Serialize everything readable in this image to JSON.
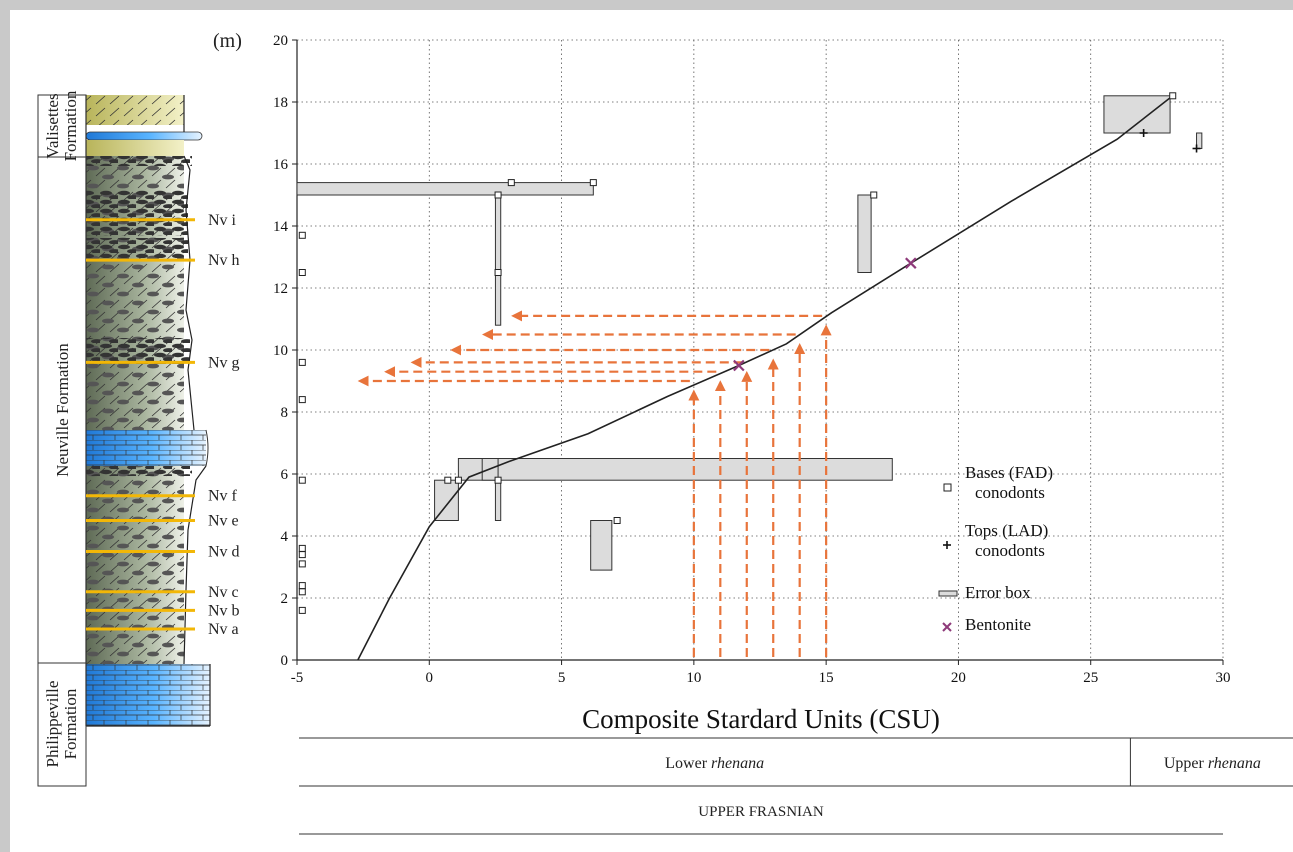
{
  "accent_color": "#e8743b",
  "bentonite_color": "#8e3a7a",
  "column": {
    "formations": [
      {
        "id": "valisettes",
        "lines": [
          "Valisettes",
          "Formation"
        ]
      },
      {
        "id": "neuville",
        "lines": [
          "Neuville Formation"
        ]
      },
      {
        "id": "philippeville",
        "lines": [
          "Philippeville",
          "Formation"
        ]
      }
    ],
    "beds": [
      {
        "label": "Nv i",
        "csu_height_m": 14.2
      },
      {
        "label": "Nv h",
        "csu_height_m": 12.9
      },
      {
        "label": "Nv g",
        "csu_height_m": 9.6
      },
      {
        "label": "Nv f",
        "csu_height_m": 5.3
      },
      {
        "label": "Nv e",
        "csu_height_m": 4.5
      },
      {
        "label": "Nv d",
        "csu_height_m": 3.5
      },
      {
        "label": "Nv c",
        "csu_height_m": 2.2
      },
      {
        "label": "Nv b",
        "csu_height_m": 1.6
      },
      {
        "label": "Nv a",
        "csu_height_m": 1.0
      }
    ]
  },
  "chart_data": {
    "type": "scatter",
    "xlabel": "Composite Stardard Units (CSU)",
    "ylabel": "(m)",
    "xlim": [
      -5,
      30
    ],
    "ylim": [
      0,
      20
    ],
    "x_ticks": [
      -5,
      0,
      5,
      10,
      15,
      20,
      25,
      30
    ],
    "y_ticks": [
      0,
      2,
      4,
      6,
      8,
      10,
      12,
      14,
      16,
      18,
      20
    ],
    "grid": true,
    "legend_position": "right",
    "legend": [
      {
        "symbol": "square",
        "lines": [
          "Bases (FAD)",
          "conodonts"
        ]
      },
      {
        "symbol": "plus",
        "lines": [
          "Tops (LAD)",
          "conodonts"
        ]
      },
      {
        "symbol": "box",
        "lines": [
          "Error box"
        ]
      },
      {
        "symbol": "cross",
        "lines": [
          "Bentonite"
        ]
      }
    ],
    "line_of_correlation": [
      [
        -2.7,
        0
      ],
      [
        -1.5,
        2
      ],
      [
        0,
        4.3
      ],
      [
        1.5,
        5.9
      ],
      [
        3,
        6.4
      ],
      [
        6,
        7.3
      ],
      [
        9,
        8.5
      ],
      [
        11.7,
        9.5
      ],
      [
        13.5,
        10.2
      ],
      [
        15.2,
        11.2
      ],
      [
        18.2,
        12.8
      ],
      [
        22,
        14.8
      ],
      [
        26,
        16.8
      ],
      [
        28.1,
        18.2
      ]
    ],
    "bases_fad": [
      [
        -4.8,
        13.7
      ],
      [
        -4.8,
        12.5
      ],
      [
        -4.8,
        9.6
      ],
      [
        -4.8,
        8.4
      ],
      [
        -4.8,
        5.8
      ],
      [
        -4.8,
        3.6
      ],
      [
        -4.8,
        3.4
      ],
      [
        -4.8,
        3.1
      ],
      [
        -4.8,
        2.4
      ],
      [
        -4.8,
        2.2
      ],
      [
        -4.8,
        1.6
      ],
      [
        2.6,
        15.0
      ],
      [
        3.1,
        15.4
      ],
      [
        6.2,
        15.4
      ],
      [
        2.6,
        12.5
      ],
      [
        16.8,
        15.0
      ],
      [
        0.7,
        5.8
      ],
      [
        1.1,
        5.8
      ],
      [
        2.6,
        5.8
      ],
      [
        7.1,
        4.5
      ],
      [
        28.1,
        18.2
      ]
    ],
    "tops_lad": [
      [
        27.0,
        17.0
      ],
      [
        29.0,
        16.5
      ]
    ],
    "error_boxes": [
      {
        "x0": -5,
        "x1": 6.2,
        "y0": 15.0,
        "y1": 15.4
      },
      {
        "x0": 2.5,
        "x1": 2.7,
        "y0": 10.8,
        "y1": 15.0
      },
      {
        "x0": 16.2,
        "x1": 16.7,
        "y0": 12.5,
        "y1": 15.0
      },
      {
        "x0": 25.5,
        "x1": 28.0,
        "y0": 17.0,
        "y1": 18.2
      },
      {
        "x0": 29.0,
        "x1": 29.2,
        "y0": 16.5,
        "y1": 17.0
      },
      {
        "x0": 1.1,
        "x1": 17.5,
        "y0": 5.8,
        "y1": 6.5
      },
      {
        "x0": 2.0,
        "x1": 2.6,
        "y0": 5.8,
        "y1": 6.5
      },
      {
        "x0": 0.2,
        "x1": 1.1,
        "y0": 4.5,
        "y1": 5.8
      },
      {
        "x0": 2.5,
        "x1": 2.7,
        "y0": 4.5,
        "y1": 5.8
      },
      {
        "x0": 6.1,
        "x1": 6.9,
        "y0": 2.9,
        "y1": 4.5
      }
    ],
    "bentonites": [
      [
        11.7,
        9.5
      ],
      [
        18.2,
        12.8
      ]
    ],
    "projections": [
      {
        "csu": 10.0,
        "height_m": 9.0
      },
      {
        "csu": 11.0,
        "height_m": 9.3
      },
      {
        "csu": 12.0,
        "height_m": 9.6
      },
      {
        "csu": 13.0,
        "height_m": 10.0
      },
      {
        "csu": 14.0,
        "height_m": 10.5
      },
      {
        "csu": 15.0,
        "height_m": 11.1
      }
    ],
    "zones": [
      {
        "label_plain": "Lower ",
        "label_italic": "rhenana",
        "x_start": -5,
        "x_end": 26.5
      },
      {
        "label_plain": "Upper ",
        "label_italic": "rhenana",
        "x_start": 26.5,
        "x_end": 30
      }
    ],
    "stage": "UPPER FRASNIAN"
  }
}
